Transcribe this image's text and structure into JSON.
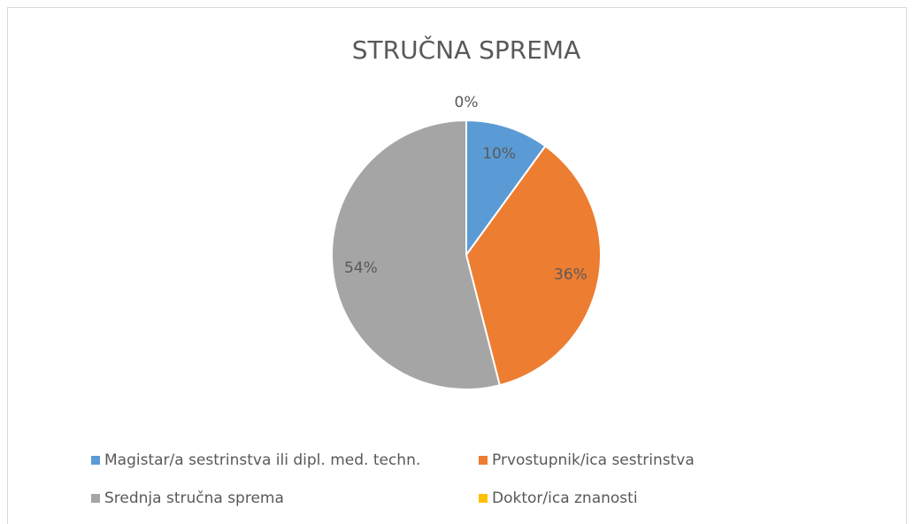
{
  "chart_data": {
    "type": "pie",
    "title": "STRUČNA SPREMA",
    "categories": [
      "Magistar/a sestrinstva ili dipl. med. techn.",
      "Prvostupnik/ica sestrinstva",
      "Srednja stručna sprema",
      "Doktor/ica znanosti"
    ],
    "values": [
      10,
      36,
      54,
      0
    ],
    "value_labels": [
      "10%",
      "36%",
      "54%",
      "0%"
    ],
    "colors": [
      "#5b9bd5",
      "#ed7d31",
      "#a5a5a5",
      "#ffc000"
    ],
    "legend": "bottom"
  }
}
